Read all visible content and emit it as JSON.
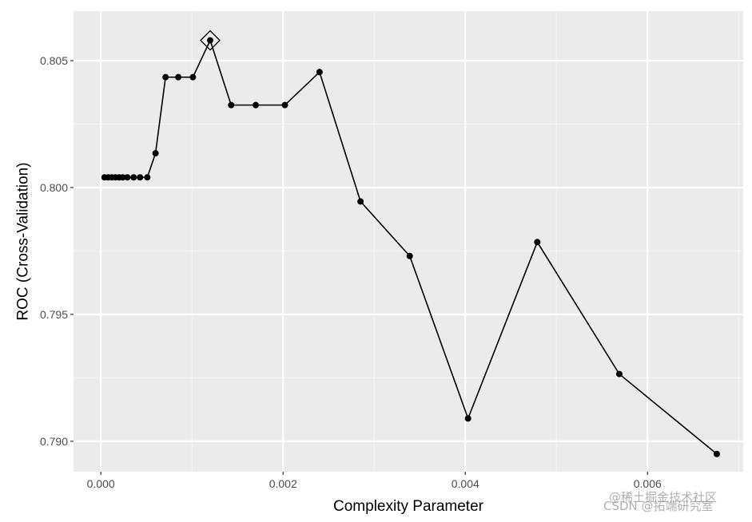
{
  "chart_data": {
    "type": "line",
    "xlabel": "Complexity Parameter",
    "ylabel": "ROC (Cross-Validation)",
    "xlim": [
      -0.0003,
      0.00705
    ],
    "ylim": [
      0.7888,
      0.80695
    ],
    "xticks": [
      {
        "value": 0.0,
        "label": "0.000"
      },
      {
        "value": 0.002,
        "label": "0.002"
      },
      {
        "value": 0.004,
        "label": "0.004"
      },
      {
        "value": 0.006,
        "label": "0.006"
      }
    ],
    "yticks": [
      {
        "value": 0.79,
        "label": "0.790"
      },
      {
        "value": 0.795,
        "label": "0.795"
      },
      {
        "value": 0.8,
        "label": "0.800"
      },
      {
        "value": 0.805,
        "label": "0.805"
      }
    ],
    "grid": true,
    "marker": "point",
    "highlight": {
      "x": 0.0012,
      "y": 0.8058,
      "marker": "diamond"
    },
    "x": [
      4e-05,
      8e-05,
      0.00012,
      0.00016,
      0.0002,
      0.00024,
      0.00029,
      0.00036,
      0.00043,
      0.00051,
      0.0006,
      0.00071,
      0.00085,
      0.00101,
      0.0012,
      0.00143,
      0.0017,
      0.00202,
      0.0024,
      0.00285,
      0.00339,
      0.00403,
      0.00479,
      0.00569,
      0.00676
    ],
    "values": [
      0.8004,
      0.8004,
      0.8004,
      0.8004,
      0.8004,
      0.8004,
      0.8004,
      0.8004,
      0.8004,
      0.8004,
      0.80135,
      0.80435,
      0.80435,
      0.80435,
      0.8058,
      0.80325,
      0.80325,
      0.80325,
      0.80455,
      0.79945,
      0.7973,
      0.7909,
      0.79785,
      0.79265,
      0.7895
    ]
  },
  "watermarks": [
    "@稀土掘金技术社区",
    "CSDN @拓端研究室"
  ],
  "colors": {
    "panel": "#ebebeb",
    "grid_major": "#ffffff",
    "grid_minor": "#f5f5f5",
    "line": "#000000",
    "tick": "#333333"
  }
}
